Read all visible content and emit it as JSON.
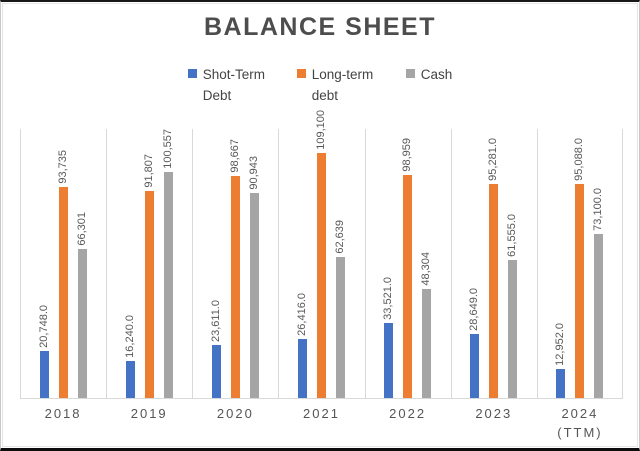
{
  "title": "BALANCE SHEET",
  "colors": {
    "short_term_debt": "#4472C4",
    "long_term_debt": "#ED7D31",
    "cash": "#A5A5A5",
    "title_text": "#4d4d4d",
    "label_text": "#595959",
    "gridline": "#d9d9d9"
  },
  "legend": {
    "items": [
      {
        "label": "Shot-Term Debt",
        "color": "#4472C4"
      },
      {
        "label": "Long-term debt",
        "color": "#ED7D31"
      },
      {
        "label": "Cash",
        "color": "#A5A5A5"
      }
    ]
  },
  "chart_data": {
    "type": "bar",
    "title": "BALANCE SHEET",
    "xlabel": "",
    "ylabel": "",
    "ylim": [
      0,
      120000
    ],
    "grid": "vertical category separators only",
    "legend_position": "top",
    "data_labels": "rotated 90 degrees above bars",
    "categories": [
      "2018",
      "2019",
      "2020",
      "2021",
      "2022",
      "2023",
      "2024 (TTM)"
    ],
    "series": [
      {
        "name": "Shot-Term Debt",
        "color": "#4472C4",
        "values": [
          20748,
          16240,
          23611,
          26416,
          33521,
          28649,
          12952
        ],
        "labels": [
          "20,748.0",
          "16,240.0",
          "23,611.0",
          "26,416.0",
          "33,521.0",
          "28,649.0",
          "12,952.0"
        ]
      },
      {
        "name": "Long-term debt",
        "color": "#ED7D31",
        "values": [
          93735,
          91807,
          98667,
          109100,
          98959,
          95281,
          95088
        ],
        "labels": [
          "93,735",
          "91,807",
          "98,667",
          "109,100",
          "98,959",
          "95,281.0",
          "95,088.0"
        ]
      },
      {
        "name": "Cash",
        "color": "#A5A5A5",
        "values": [
          66301,
          100557,
          90943,
          62639,
          48304,
          61555,
          73100
        ],
        "labels": [
          "66,301",
          "100,557",
          "90,943",
          "62,639",
          "48,304",
          "61,555.0",
          "73,100.0"
        ]
      }
    ]
  }
}
